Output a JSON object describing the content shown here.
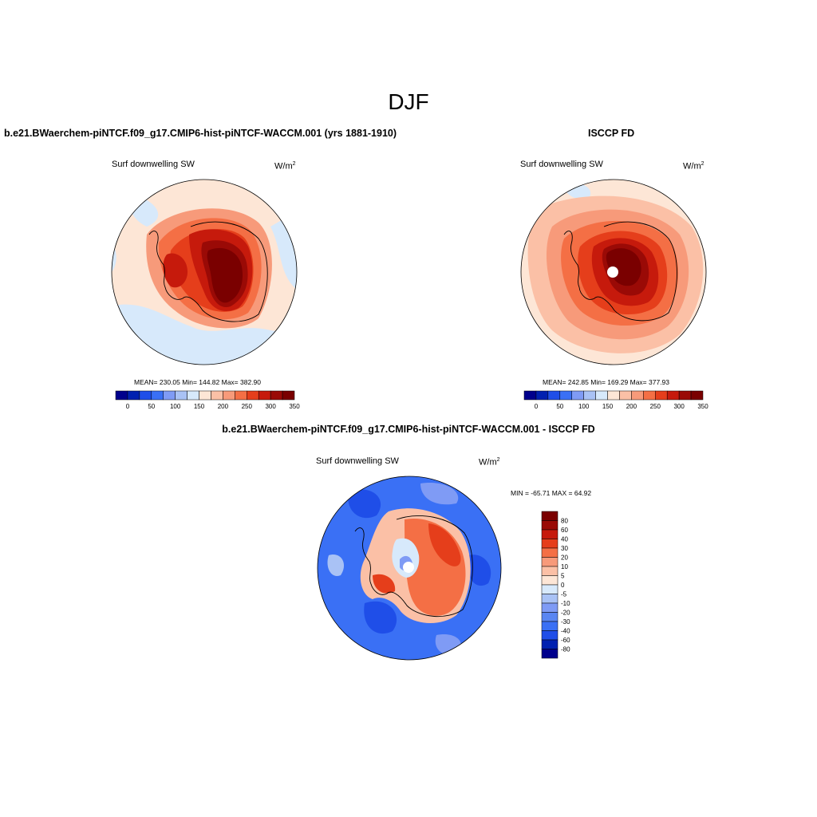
{
  "figure": {
    "title": "DJF",
    "panel_case_title": "b.e21.BWaerchem-piNTCF.f09_g17.CMIP6-hist-piNTCF-WACCM.001 (yrs 1881-1910)",
    "panel_obs_title": "ISCCP FD",
    "panel_diff_title": "b.e21.BWaerchem-piNTCF.f09_g17.CMIP6-hist-piNTCF-WACCM.001 - ISCCP FD"
  },
  "colors": {
    "absolute_scale": [
      "#00008c",
      "#0020b0",
      "#1f4ee8",
      "#3a70f5",
      "#7f9bf5",
      "#a9c2f5",
      "#d7e9fb",
      "#fde6d6",
      "#fbc0a6",
      "#f79a7a",
      "#f46f45",
      "#e53e1b",
      "#c61a0c",
      "#9a0a06",
      "#7a0000"
    ],
    "difference_scale": [
      "#00008c",
      "#0020b0",
      "#1f4ee8",
      "#3a70f5",
      "#5a86f2",
      "#7f9bf5",
      "#a9c2f5",
      "#d7e9fb",
      "#fde6d6",
      "#fbc0a6",
      "#f79a7a",
      "#f46f45",
      "#e53e1b",
      "#c61a0c",
      "#9a0a06",
      "#7a0000"
    ],
    "coastline": "#000000"
  },
  "chart_data": [
    {
      "type": "heatmap",
      "projection": "south polar stereographic",
      "title": "b.e21.BWaerchem-piNTCF.f09_g17.CMIP6-hist-piNTCF-WACCM.001 (yrs 1881-1910)",
      "variable": "Surf downwelling SW",
      "units_base": "W/m",
      "units_exp": "2",
      "stats": "MEAN= 230.05  Min= 144.82  Max= 382.90",
      "mean": 230.05,
      "min": 144.82,
      "max": 382.9,
      "levels": [
        0,
        25,
        50,
        75,
        100,
        125,
        150,
        175,
        200,
        225,
        250,
        275,
        300,
        325,
        350
      ],
      "tick_labels": [
        "0",
        "50",
        "100",
        "150",
        "200",
        "250",
        "300",
        "350"
      ]
    },
    {
      "type": "heatmap",
      "projection": "south polar stereographic",
      "title": "ISCCP FD",
      "variable": "Surf downwelling SW",
      "units_base": "W/m",
      "units_exp": "2",
      "stats": "MEAN= 242.85  Min= 169.29  Max= 377.93",
      "mean": 242.85,
      "min": 169.29,
      "max": 377.93,
      "levels": [
        0,
        25,
        50,
        75,
        100,
        125,
        150,
        175,
        200,
        225,
        250,
        275,
        300,
        325,
        350
      ],
      "tick_labels": [
        "0",
        "50",
        "100",
        "150",
        "200",
        "250",
        "300",
        "350"
      ]
    },
    {
      "type": "heatmap",
      "projection": "south polar stereographic",
      "title": "b.e21.BWaerchem-piNTCF.f09_g17.CMIP6-hist-piNTCF-WACCM.001 - ISCCP FD",
      "variable": "Surf downwelling SW",
      "units_base": "W/m",
      "units_exp": "2",
      "stats": "MIN = -65.71 MAX =  64.92",
      "min": -65.71,
      "max": 64.92,
      "levels": [
        -80,
        -60,
        -40,
        -30,
        -20,
        -10,
        -5,
        0,
        5,
        10,
        20,
        30,
        40,
        60,
        80
      ],
      "tick_labels": [
        "80",
        "60",
        "40",
        "30",
        "20",
        "10",
        "5",
        "0",
        "-5",
        "-10",
        "-20",
        "-30",
        "-40",
        "-60",
        "-80"
      ]
    }
  ]
}
